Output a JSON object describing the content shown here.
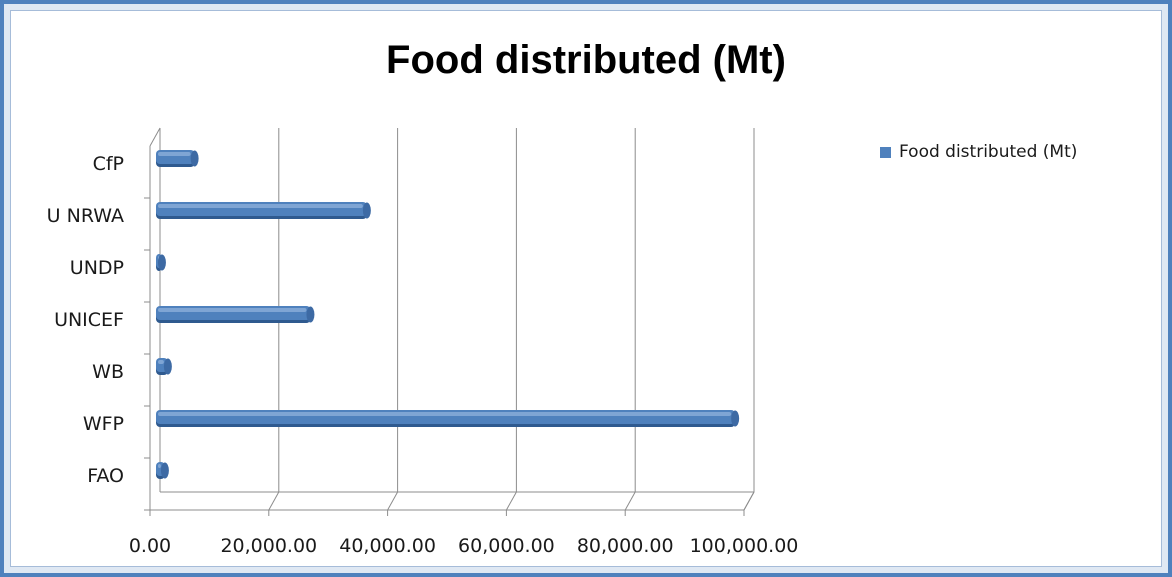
{
  "chart_data": {
    "type": "bar",
    "orientation": "horizontal",
    "title": "Food distributed (Mt)",
    "xlabel": "",
    "ylabel": "",
    "categories": [
      "FAO",
      "WFP",
      "WB",
      "UNICEF",
      "UNDP",
      "U NRWA",
      "CfP"
    ],
    "series": [
      {
        "name": "Food distributed (Mt)",
        "values": [
          1500,
          97500,
          2000,
          26000,
          1000,
          35500,
          6500
        ]
      }
    ],
    "xlim": [
      0,
      100000
    ],
    "x_ticks": [
      "0.00",
      "20,000.00",
      "40,000.00",
      "60,000.00",
      "80,000.00",
      "100,000.00"
    ],
    "grid": "vertical major gridlines",
    "legend_position": "right",
    "bar_color": "#4f81bd"
  }
}
